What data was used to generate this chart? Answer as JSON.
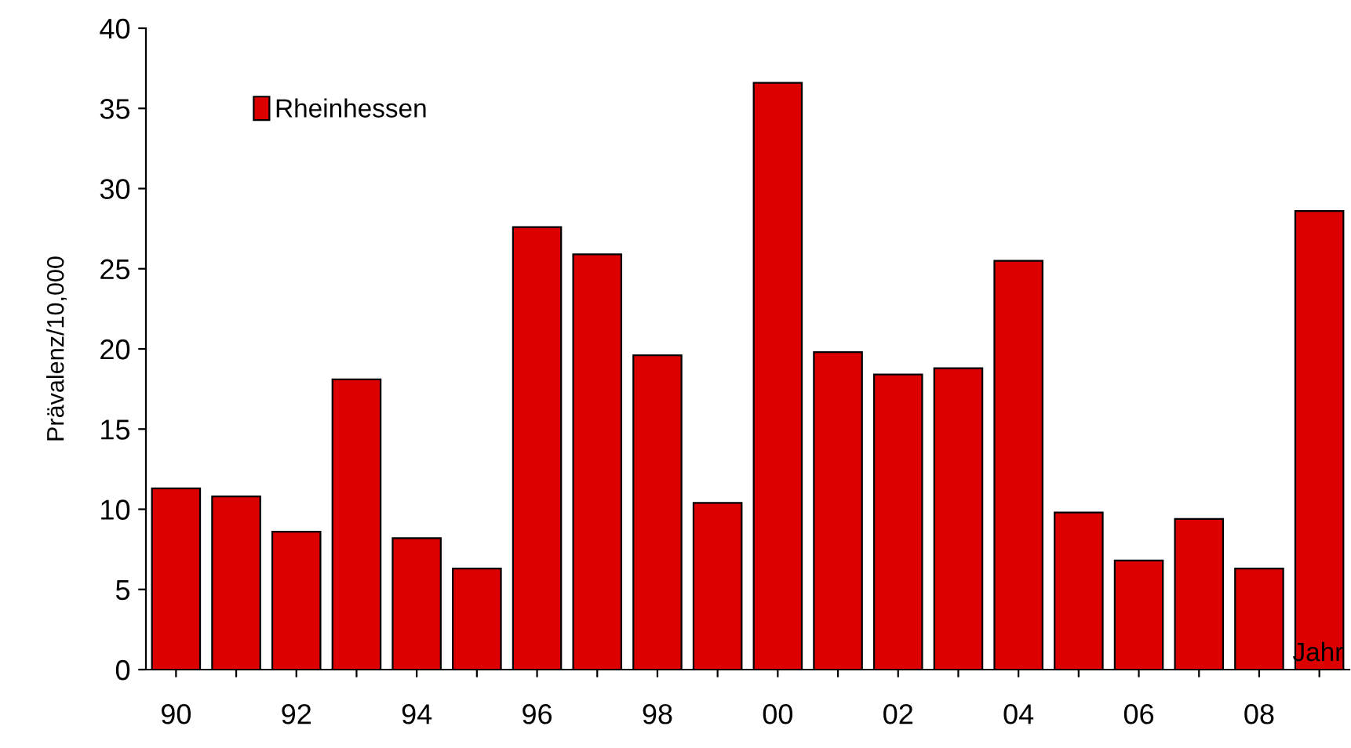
{
  "chart_data": {
    "type": "bar",
    "xlabel": "Jahr",
    "ylabel": "Prävalenz/10,000",
    "categories": [
      "90",
      null,
      "92",
      null,
      "94",
      null,
      "96",
      null,
      "98",
      null,
      "00",
      null,
      "02",
      null,
      "04",
      null,
      "06",
      null,
      "08",
      null
    ],
    "series": [
      {
        "name": "Rheinhessen",
        "color": "#dd0000",
        "values": [
          11.3,
          10.8,
          8.6,
          18.1,
          8.2,
          6.3,
          27.6,
          25.9,
          19.6,
          10.4,
          36.6,
          19.8,
          18.4,
          18.8,
          25.5,
          9.8,
          6.8,
          9.4,
          6.3,
          28.6
        ]
      }
    ],
    "ylim": [
      0,
      40
    ],
    "yticks": [
      0,
      5,
      10,
      15,
      20,
      25,
      30,
      35,
      40
    ],
    "grid": false,
    "legend": "top left"
  }
}
